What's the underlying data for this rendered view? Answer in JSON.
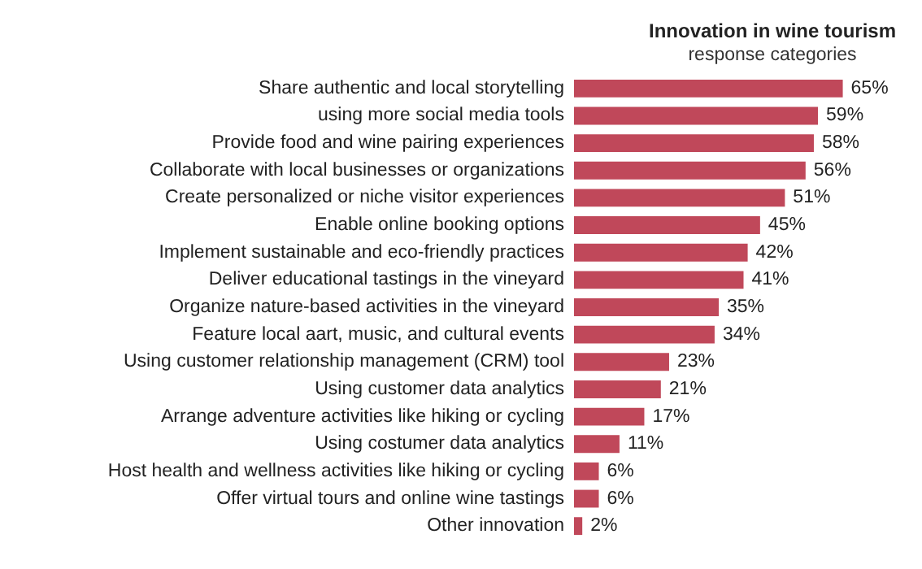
{
  "chart_data": {
    "type": "bar",
    "orientation": "horizontal",
    "title": "Innovation in wine tourism",
    "subtitle": "response categories",
    "categories": [
      "Share authentic and local storytelling",
      "using more social media tools",
      "Provide food and wine pairing experiences",
      "Collaborate with local businesses or organizations",
      "Create personalized or niche visitor experiences",
      "Enable online booking options",
      "Implement sustainable and eco-friendly practices",
      "Deliver educational tastings in the vineyard",
      "Organize nature-based activities in the vineyard",
      "Feature local aart, music, and cultural events",
      "Using customer relationship management (CRM) tool",
      "Using customer data analytics",
      "Arrange adventure activities like hiking or cycling",
      "Using costumer data analytics",
      "Host health and wellness activities like hiking or cycling",
      "Offer virtual tours and online wine tastings",
      "Other innovation"
    ],
    "values": [
      65,
      59,
      58,
      56,
      51,
      45,
      42,
      41,
      35,
      34,
      23,
      21,
      17,
      11,
      6,
      6,
      2
    ],
    "value_labels": [
      "65%",
      "59%",
      "58%",
      "56%",
      "51%",
      "45%",
      "42%",
      "41%",
      "35%",
      "34%",
      "23%",
      "21%",
      "17%",
      "11%",
      "6%",
      "6%",
      "2%"
    ],
    "color": "#c0485a",
    "grid": false
  }
}
